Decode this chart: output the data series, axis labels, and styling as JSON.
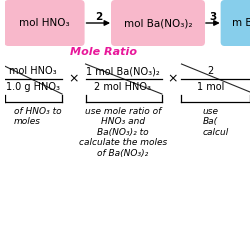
{
  "pink_box_color": "#f8b8cb",
  "blue_box_color": "#87ceeb",
  "box1_text": "mol HNO₃",
  "box2_text": "mol Ba(NO₃)₂",
  "box3_text": "m B",
  "arrow1_label": "2",
  "arrow2_label": "3",
  "mole_ratio_text": "Mole Ratio",
  "mole_ratio_color": "#e8189a",
  "frac1_num": "mol HNO₃",
  "frac1_den": "1.0 g HNO₃",
  "frac2_num": "1 mol Ba(NO₃)₂",
  "frac2_den": "2 mol HNO₃",
  "frac3_num": "2",
  "frac3_den": "1 mol",
  "label1_line1": "of HNO₃ to",
  "label1_line2": "moles",
  "label2": "use mole ratio of\nHNO₃ and\nBa(NO₃)₂ to\ncalculate the moles\nof Ba(NO₃)₂",
  "label3_line1": "use",
  "label3_line2": "Ba(",
  "label3_line3": "calcul"
}
